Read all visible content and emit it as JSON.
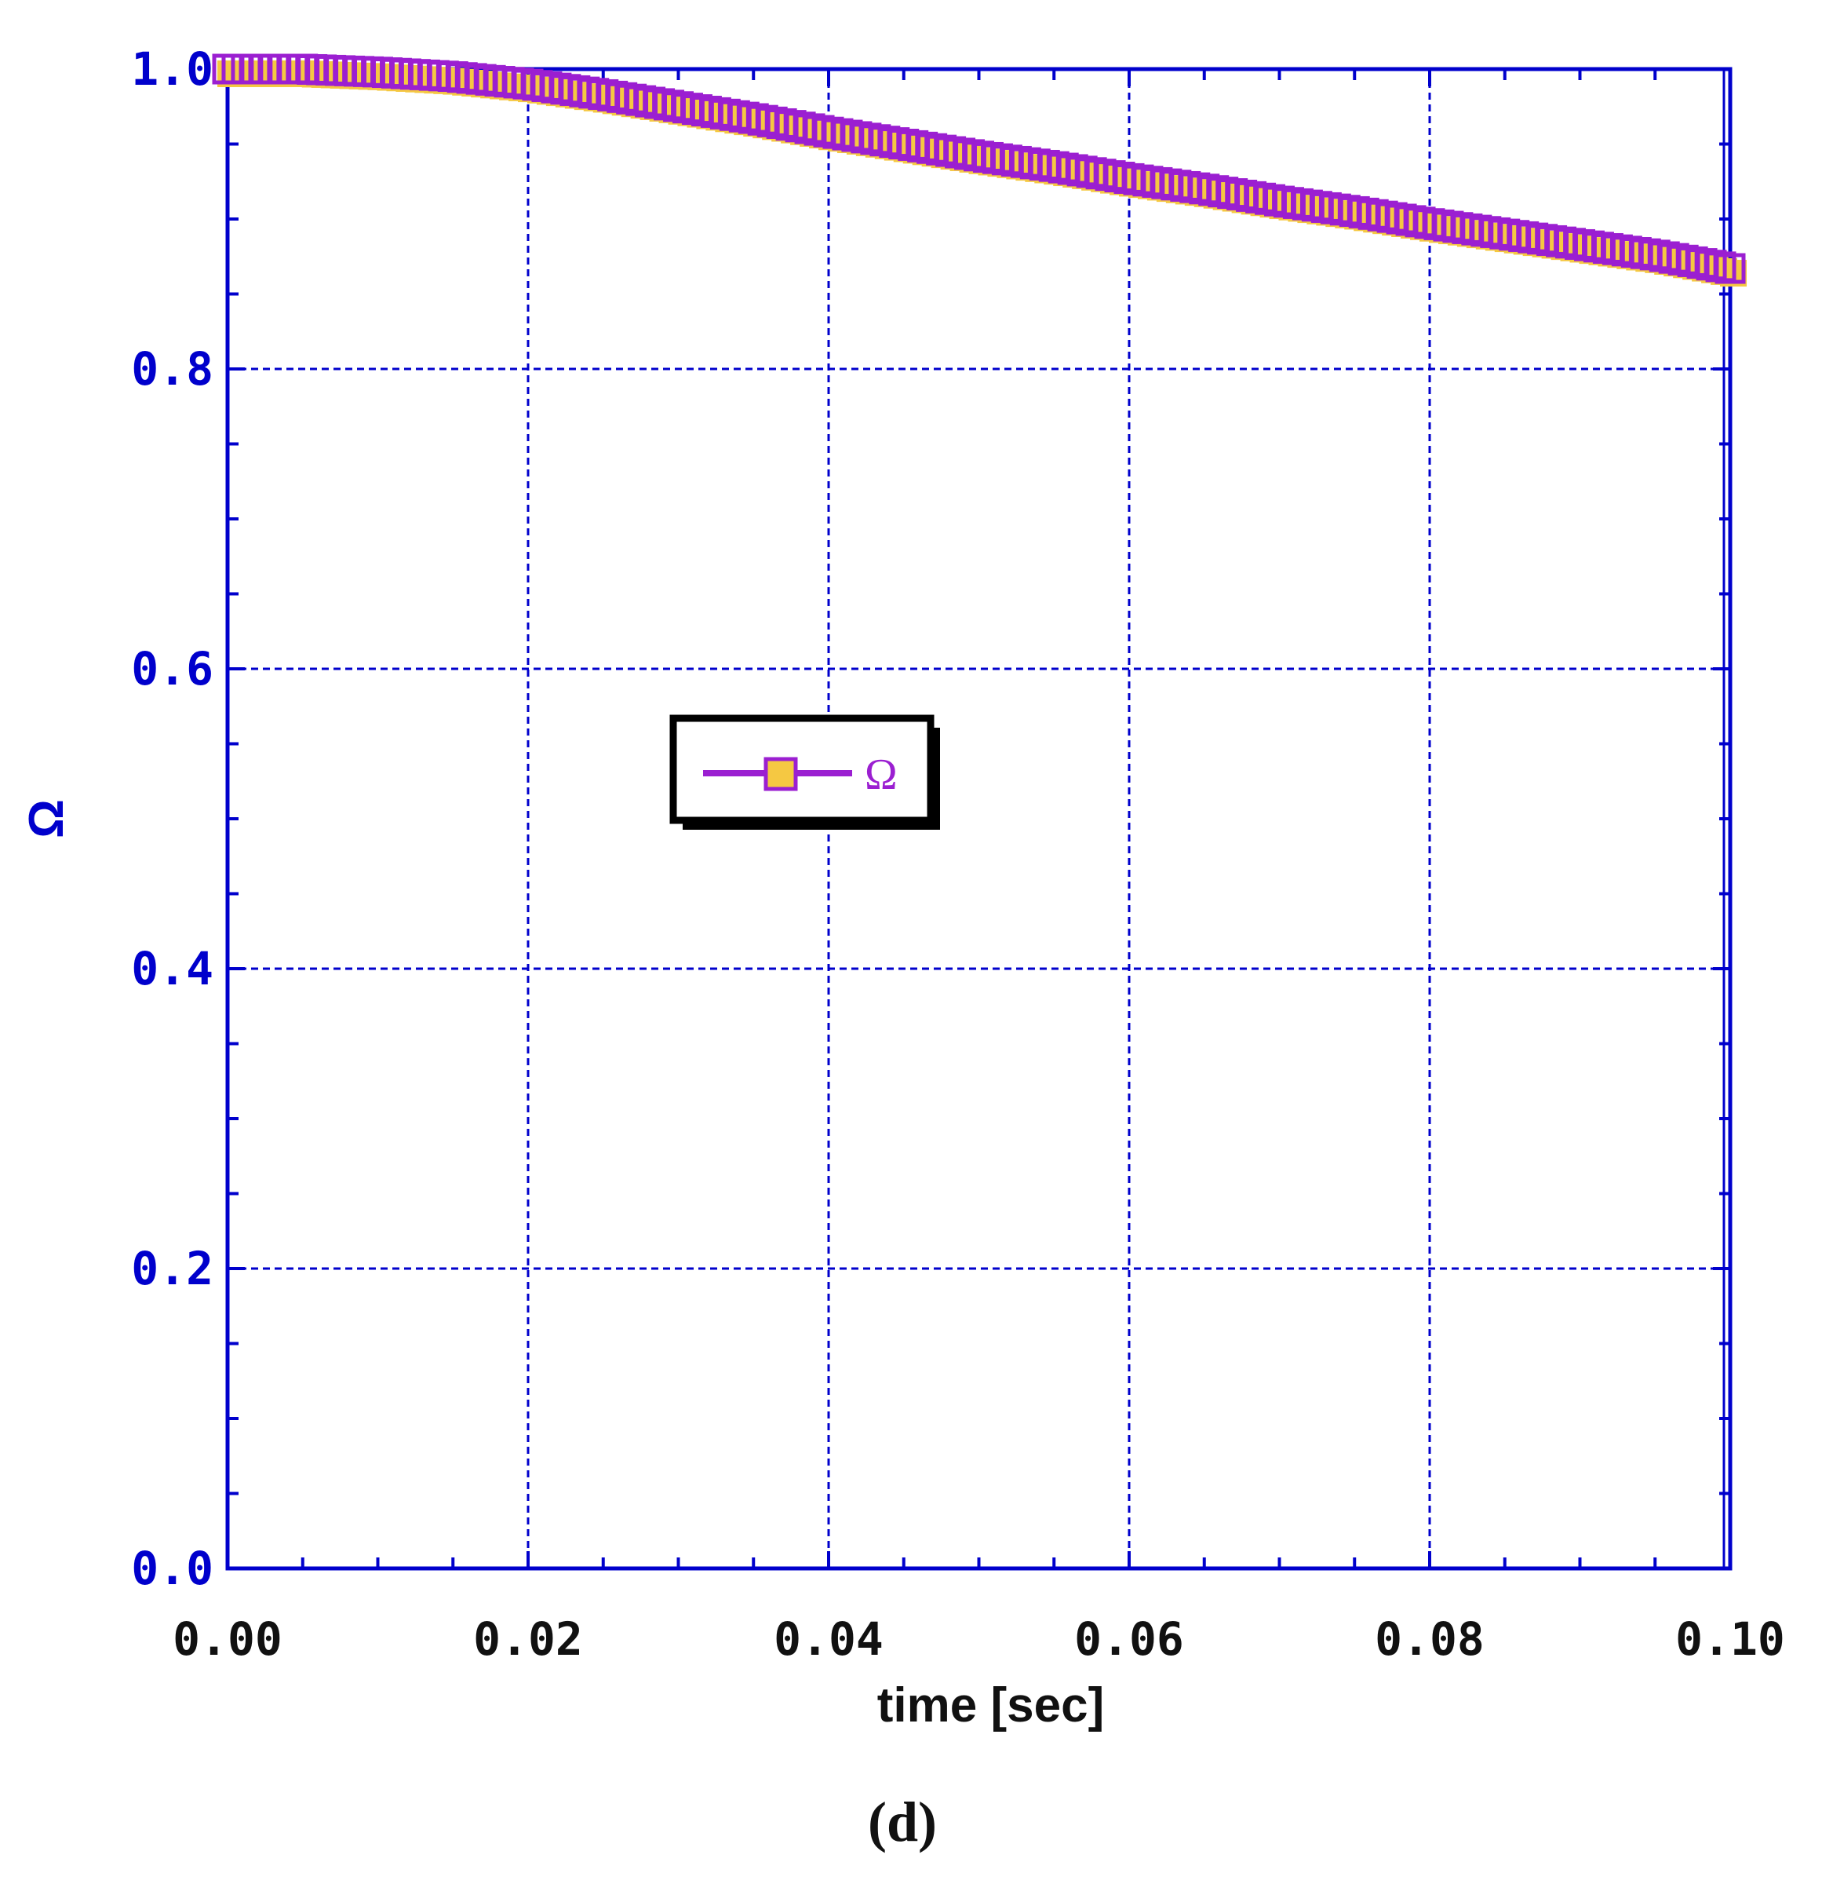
{
  "chart_data": {
    "type": "line",
    "xlabel": "time [sec]",
    "ylabel": "Ω",
    "caption": "(d)",
    "xlim": [
      0.0,
      0.1
    ],
    "ylim": [
      0.0,
      1.0
    ],
    "x_ticks": [
      "0.00",
      "0.02",
      "0.04",
      "0.06",
      "0.08",
      "0.10"
    ],
    "y_ticks": [
      "0.0",
      "0.2",
      "0.4",
      "0.6",
      "0.8",
      "1.0"
    ],
    "grid": true,
    "legend_position": "center-left",
    "colors": {
      "axis": "#0000cc",
      "series_line": "#9b1fd1",
      "marker_fill": "#f5c842",
      "xlabel": "#111111",
      "legend_border": "#000000"
    },
    "series": [
      {
        "name": "Ω",
        "marker": "square",
        "x": [
          0.0,
          0.005,
          0.01,
          0.015,
          0.02,
          0.025,
          0.03,
          0.035,
          0.04,
          0.045,
          0.05,
          0.055,
          0.06,
          0.065,
          0.07,
          0.075,
          0.08,
          0.085,
          0.09,
          0.095,
          0.1
        ],
        "y": [
          1.0,
          1.0,
          0.998,
          0.995,
          0.99,
          0.983,
          0.975,
          0.967,
          0.958,
          0.95,
          0.942,
          0.935,
          0.927,
          0.92,
          0.912,
          0.905,
          0.897,
          0.89,
          0.883,
          0.876,
          0.867
        ]
      }
    ]
  }
}
